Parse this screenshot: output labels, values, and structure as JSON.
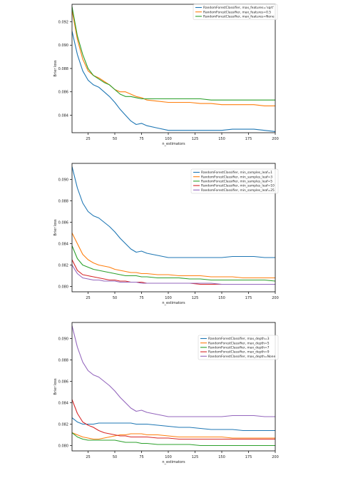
{
  "chart_data": [
    {
      "type": "line",
      "xlabel": "n_estimators",
      "ylabel": "Brier loss",
      "xlim": [
        10,
        200
      ],
      "ylim": [
        0.0825,
        0.0935
      ],
      "xticks": [
        25,
        50,
        75,
        100,
        125,
        150,
        175,
        200
      ],
      "yticks": [
        0.084,
        0.086,
        0.088,
        0.09,
        0.092
      ],
      "tick_labels_x": [
        "25",
        "50",
        "75",
        "100",
        "125",
        "150",
        "175",
        "200"
      ],
      "tick_labels_y": [
        "0.084",
        "0.086",
        "0.088",
        "0.090",
        "0.092"
      ],
      "legend_position": "top-right",
      "grid": false,
      "series": [
        {
          "name": "RandomForestClassifier, max_features='sqrt'",
          "color": "#1f77b4",
          "x": [
            10,
            15,
            20,
            25,
            30,
            35,
            40,
            45,
            50,
            55,
            60,
            65,
            70,
            75,
            80,
            90,
            100,
            110,
            120,
            130,
            140,
            150,
            160,
            170,
            180,
            190,
            200
          ],
          "y": [
            0.0912,
            0.0892,
            0.0878,
            0.087,
            0.0866,
            0.0864,
            0.086,
            0.0856,
            0.0851,
            0.0845,
            0.084,
            0.0835,
            0.0832,
            0.0833,
            0.0831,
            0.0829,
            0.0827,
            0.0827,
            0.0827,
            0.0827,
            0.0827,
            0.0827,
            0.0828,
            0.0828,
            0.0828,
            0.0827,
            0.0826
          ]
        },
        {
          "name": "RandomForestClassifier, max_features=0.5",
          "color": "#ff7f0e",
          "x": [
            10,
            15,
            20,
            25,
            30,
            35,
            40,
            45,
            50,
            55,
            60,
            65,
            70,
            75,
            80,
            90,
            100,
            110,
            120,
            130,
            140,
            150,
            160,
            170,
            180,
            190,
            200
          ],
          "y": [
            0.093,
            0.0905,
            0.0888,
            0.0878,
            0.0874,
            0.0872,
            0.0869,
            0.0866,
            0.0862,
            0.086,
            0.086,
            0.0858,
            0.0856,
            0.0855,
            0.0853,
            0.0852,
            0.0851,
            0.0851,
            0.0851,
            0.085,
            0.085,
            0.0849,
            0.0849,
            0.0849,
            0.0849,
            0.0848,
            0.0848
          ]
        },
        {
          "name": "RandomForestClassifier, max_features=None",
          "color": "#2ca02c",
          "x": [
            10,
            15,
            20,
            25,
            30,
            35,
            40,
            45,
            50,
            55,
            60,
            65,
            70,
            75,
            80,
            90,
            100,
            110,
            120,
            130,
            140,
            150,
            160,
            170,
            180,
            190,
            200
          ],
          "y": [
            0.0933,
            0.0908,
            0.0892,
            0.088,
            0.0874,
            0.0871,
            0.0868,
            0.0866,
            0.0862,
            0.0858,
            0.0856,
            0.0856,
            0.0855,
            0.0854,
            0.0854,
            0.0854,
            0.0854,
            0.0854,
            0.0854,
            0.0854,
            0.0853,
            0.0853,
            0.0853,
            0.0853,
            0.0853,
            0.0853,
            0.0853
          ]
        }
      ]
    },
    {
      "type": "line",
      "xlabel": "n_estimators",
      "ylabel": "Brier loss",
      "xlim": [
        10,
        200
      ],
      "ylim": [
        0.0795,
        0.0915
      ],
      "xticks": [
        25,
        50,
        75,
        100,
        125,
        150,
        175,
        200
      ],
      "yticks": [
        0.08,
        0.082,
        0.084,
        0.086,
        0.088,
        0.09
      ],
      "tick_labels_x": [
        "25",
        "50",
        "75",
        "100",
        "125",
        "150",
        "175",
        "200"
      ],
      "tick_labels_y": [
        "0.080",
        "0.082",
        "0.084",
        "0.086",
        "0.088",
        "0.090"
      ],
      "legend_position": "top-right",
      "grid": false,
      "series": [
        {
          "name": "RandomForestClassifier, min_samples_leaf=1",
          "color": "#1f77b4",
          "x": [
            10,
            15,
            20,
            25,
            30,
            35,
            40,
            45,
            50,
            55,
            60,
            65,
            70,
            75,
            80,
            90,
            100,
            110,
            120,
            130,
            140,
            150,
            160,
            170,
            180,
            190,
            200
          ],
          "y": [
            0.0912,
            0.0892,
            0.0878,
            0.087,
            0.0866,
            0.0864,
            0.086,
            0.0856,
            0.0851,
            0.0845,
            0.084,
            0.0835,
            0.0832,
            0.0833,
            0.0831,
            0.0829,
            0.0827,
            0.0827,
            0.0827,
            0.0827,
            0.0827,
            0.0827,
            0.0828,
            0.0828,
            0.0828,
            0.0827,
            0.0827
          ]
        },
        {
          "name": "RandomForestClassifier, min_samples_leaf=3",
          "color": "#ff7f0e",
          "x": [
            10,
            15,
            20,
            25,
            30,
            35,
            40,
            45,
            50,
            55,
            60,
            65,
            70,
            75,
            80,
            90,
            100,
            110,
            120,
            130,
            140,
            150,
            160,
            170,
            180,
            190,
            200
          ],
          "y": [
            0.085,
            0.084,
            0.083,
            0.0825,
            0.0822,
            0.082,
            0.0819,
            0.0818,
            0.0816,
            0.0815,
            0.0814,
            0.0813,
            0.0813,
            0.0812,
            0.0812,
            0.0811,
            0.0811,
            0.081,
            0.081,
            0.081,
            0.0809,
            0.0809,
            0.0809,
            0.0808,
            0.0808,
            0.0808,
            0.0808
          ]
        },
        {
          "name": "RandomForestClassifier, min_samples_leaf=5",
          "color": "#2ca02c",
          "x": [
            10,
            15,
            20,
            25,
            30,
            35,
            40,
            45,
            50,
            55,
            60,
            65,
            70,
            75,
            80,
            90,
            100,
            110,
            120,
            130,
            140,
            150,
            160,
            170,
            180,
            190,
            200
          ],
          "y": [
            0.0838,
            0.0826,
            0.082,
            0.0818,
            0.0816,
            0.0815,
            0.0814,
            0.0813,
            0.0812,
            0.0811,
            0.081,
            0.081,
            0.081,
            0.0809,
            0.0809,
            0.0808,
            0.0808,
            0.0808,
            0.0807,
            0.0807,
            0.0806,
            0.0806,
            0.0806,
            0.0806,
            0.0806,
            0.0806,
            0.0805
          ]
        },
        {
          "name": "RandomForestClassifier, min_samples_leaf=10",
          "color": "#d62728",
          "x": [
            10,
            15,
            20,
            25,
            30,
            35,
            40,
            45,
            50,
            55,
            60,
            65,
            70,
            75,
            80,
            90,
            100,
            110,
            120,
            130,
            140,
            150,
            160,
            170,
            180,
            190,
            200
          ],
          "y": [
            0.0825,
            0.0815,
            0.0811,
            0.081,
            0.0809,
            0.0808,
            0.0807,
            0.0806,
            0.0806,
            0.0805,
            0.0805,
            0.0804,
            0.0804,
            0.0804,
            0.0803,
            0.0803,
            0.0803,
            0.0803,
            0.0803,
            0.0802,
            0.0802,
            0.0802,
            0.0802,
            0.0802,
            0.0802,
            0.0802,
            0.0802
          ]
        },
        {
          "name": "RandomForestClassifier, min_samples_leaf=25",
          "color": "#9467bd",
          "x": [
            10,
            15,
            20,
            25,
            30,
            35,
            40,
            45,
            50,
            55,
            60,
            65,
            70,
            75,
            80,
            90,
            100,
            110,
            120,
            130,
            140,
            150,
            160,
            170,
            180,
            190,
            200
          ],
          "y": [
            0.082,
            0.0812,
            0.0808,
            0.0807,
            0.0806,
            0.0806,
            0.0805,
            0.0805,
            0.0805,
            0.0804,
            0.0804,
            0.0804,
            0.0804,
            0.0803,
            0.0803,
            0.0803,
            0.0803,
            0.0803,
            0.0803,
            0.0803,
            0.0803,
            0.0802,
            0.0802,
            0.0802,
            0.0802,
            0.0802,
            0.0802
          ]
        }
      ]
    },
    {
      "type": "line",
      "xlabel": "n_estimators",
      "ylabel": "Brier loss",
      "xlim": [
        10,
        200
      ],
      "ylim": [
        0.0795,
        0.0915
      ],
      "xticks": [
        25,
        50,
        75,
        100,
        125,
        150,
        175,
        200
      ],
      "yticks": [
        0.08,
        0.082,
        0.084,
        0.086,
        0.088,
        0.09
      ],
      "tick_labels_x": [
        "25",
        "50",
        "75",
        "100",
        "125",
        "150",
        "175",
        "200"
      ],
      "tick_labels_y": [
        "0.080",
        "0.082",
        "0.084",
        "0.086",
        "0.088",
        "0.090"
      ],
      "legend_position": "top-right",
      "grid": false,
      "series": [
        {
          "name": "RandomForestClassifier, max_depth=3",
          "color": "#1f77b4",
          "x": [
            10,
            15,
            20,
            25,
            30,
            35,
            40,
            45,
            50,
            55,
            60,
            65,
            70,
            75,
            80,
            90,
            100,
            110,
            120,
            130,
            140,
            150,
            160,
            170,
            180,
            190,
            200
          ],
          "y": [
            0.0826,
            0.0822,
            0.082,
            0.082,
            0.082,
            0.0821,
            0.0821,
            0.0821,
            0.0821,
            0.0821,
            0.0821,
            0.0821,
            0.082,
            0.082,
            0.082,
            0.0819,
            0.0818,
            0.0817,
            0.0817,
            0.0816,
            0.0815,
            0.0815,
            0.0815,
            0.0814,
            0.0814,
            0.0814,
            0.0814
          ]
        },
        {
          "name": "RandomForestClassifier, max_depth=5",
          "color": "#ff7f0e",
          "x": [
            10,
            15,
            20,
            25,
            30,
            35,
            40,
            45,
            50,
            55,
            60,
            65,
            70,
            75,
            80,
            90,
            100,
            110,
            120,
            130,
            140,
            150,
            160,
            170,
            180,
            190,
            200
          ],
          "y": [
            0.0812,
            0.081,
            0.0808,
            0.0807,
            0.0806,
            0.0806,
            0.0807,
            0.0808,
            0.0809,
            0.081,
            0.081,
            0.0811,
            0.0811,
            0.0811,
            0.081,
            0.081,
            0.0809,
            0.0808,
            0.0808,
            0.0808,
            0.0808,
            0.0808,
            0.0807,
            0.0807,
            0.0807,
            0.0807,
            0.0807
          ]
        },
        {
          "name": "RandomForestClassifier, max_depth=7",
          "color": "#2ca02c",
          "x": [
            10,
            15,
            20,
            25,
            30,
            35,
            40,
            45,
            50,
            55,
            60,
            65,
            70,
            75,
            80,
            90,
            100,
            110,
            120,
            130,
            140,
            150,
            160,
            170,
            180,
            190,
            200
          ],
          "y": [
            0.0812,
            0.0808,
            0.0806,
            0.0805,
            0.0805,
            0.0805,
            0.0805,
            0.0805,
            0.0805,
            0.0804,
            0.0803,
            0.0803,
            0.0803,
            0.0802,
            0.0802,
            0.0801,
            0.0801,
            0.0801,
            0.0801,
            0.08,
            0.08,
            0.08,
            0.08,
            0.08,
            0.08,
            0.08,
            0.08
          ]
        },
        {
          "name": "RandomForestClassifier, max_depth=9",
          "color": "#d62728",
          "x": [
            10,
            15,
            20,
            25,
            30,
            35,
            40,
            45,
            50,
            55,
            60,
            65,
            70,
            75,
            80,
            90,
            100,
            110,
            120,
            130,
            140,
            150,
            160,
            170,
            180,
            190,
            200
          ],
          "y": [
            0.0843,
            0.083,
            0.0822,
            0.0819,
            0.0817,
            0.0814,
            0.0812,
            0.0811,
            0.081,
            0.0809,
            0.0809,
            0.0808,
            0.0808,
            0.0808,
            0.0808,
            0.0807,
            0.0807,
            0.0806,
            0.0806,
            0.0806,
            0.0806,
            0.0806,
            0.0806,
            0.0806,
            0.0806,
            0.0806,
            0.0806
          ]
        },
        {
          "name": "RandomForestClassifier, max_depth=None",
          "color": "#9467bd",
          "x": [
            10,
            15,
            20,
            25,
            30,
            35,
            40,
            45,
            50,
            55,
            60,
            65,
            70,
            75,
            80,
            90,
            100,
            110,
            120,
            130,
            140,
            150,
            160,
            170,
            180,
            190,
            200
          ],
          "y": [
            0.0912,
            0.0892,
            0.0878,
            0.087,
            0.0866,
            0.0864,
            0.086,
            0.0856,
            0.0851,
            0.0845,
            0.084,
            0.0835,
            0.0832,
            0.0833,
            0.0831,
            0.0829,
            0.0827,
            0.0827,
            0.0827,
            0.0827,
            0.0827,
            0.0827,
            0.0828,
            0.0828,
            0.0828,
            0.0827,
            0.0827
          ]
        }
      ]
    }
  ]
}
